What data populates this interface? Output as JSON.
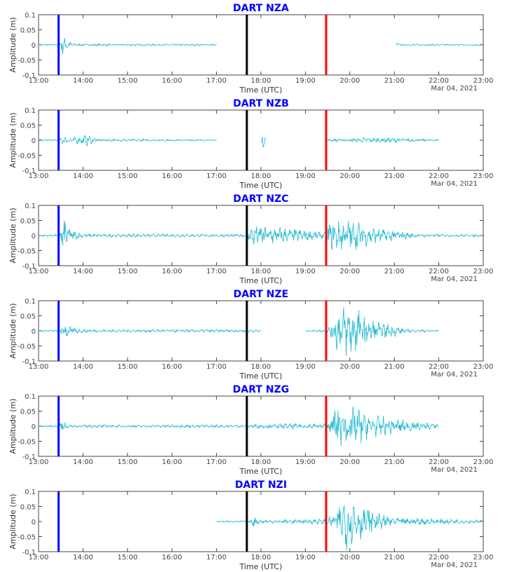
{
  "colors": {
    "trace": "#1fb8d0",
    "line_blue": "#0000ff",
    "line_black": "#000000",
    "line_red": "#ff0000",
    "title": "#0000ff"
  },
  "chart_data": {
    "type": "line",
    "xlabel": "Time (UTC)",
    "ylabel": "Amplitude (m)",
    "date_label": "Mar 04, 2021",
    "xlim": [
      "13:00",
      "23:00"
    ],
    "ylim": [
      -0.1,
      0.1
    ],
    "xticks": [
      "13:00",
      "14:00",
      "15:00",
      "16:00",
      "17:00",
      "18:00",
      "19:00",
      "20:00",
      "21:00",
      "22:00",
      "23:00"
    ],
    "yticks": [
      "0.1",
      "0.05",
      "0",
      "-0.05",
      "-0.1"
    ],
    "vertical_lines": [
      {
        "time": "13:27",
        "color": "blue"
      },
      {
        "time": "17:41",
        "color": "black"
      },
      {
        "time": "19:28",
        "color": "red"
      }
    ],
    "grid": false,
    "panels": [
      {
        "title": "DART NZA",
        "segments": [
          [
            "13:00",
            "17:00"
          ],
          [
            "21:03",
            "23:00"
          ]
        ],
        "envelope": [
          [
            "13:00",
            0.003
          ],
          [
            "13:28",
            0.003
          ],
          [
            "13:32",
            0.035
          ],
          [
            "13:40",
            0.012
          ],
          [
            "13:50",
            0.004
          ],
          [
            "17:00",
            0.003
          ],
          [
            "21:03",
            0.01
          ],
          [
            "21:06",
            0.003
          ],
          [
            "23:00",
            0.003
          ]
        ]
      },
      {
        "title": "DART NZB",
        "segments": [
          [
            "13:00",
            "17:00"
          ],
          [
            "18:00",
            "18:07"
          ],
          [
            "19:30",
            "22:00"
          ]
        ],
        "envelope": [
          [
            "13:00",
            0.003
          ],
          [
            "13:28",
            0.003
          ],
          [
            "13:32",
            0.015
          ],
          [
            "13:45",
            0.008
          ],
          [
            "14:05",
            0.02
          ],
          [
            "14:20",
            0.005
          ],
          [
            "17:00",
            0.003
          ],
          [
            "18:00",
            0.02
          ],
          [
            "18:03",
            0.025
          ],
          [
            "18:07",
            0.01
          ],
          [
            "19:30",
            0.004
          ],
          [
            "20:30",
            0.01
          ],
          [
            "21:00",
            0.008
          ],
          [
            "22:00",
            0.003
          ]
        ]
      },
      {
        "title": "DART NZC",
        "segments": [
          [
            "13:00",
            "23:00"
          ]
        ],
        "envelope": [
          [
            "13:00",
            0.003
          ],
          [
            "13:27",
            0.004
          ],
          [
            "13:32",
            0.07
          ],
          [
            "13:45",
            0.02
          ],
          [
            "14:00",
            0.006
          ],
          [
            "17:41",
            0.005
          ],
          [
            "17:46",
            0.04
          ],
          [
            "18:30",
            0.03
          ],
          [
            "19:27",
            0.01
          ],
          [
            "19:32",
            0.05
          ],
          [
            "20:00",
            0.06
          ],
          [
            "20:30",
            0.03
          ],
          [
            "21:00",
            0.02
          ],
          [
            "21:30",
            0.006
          ],
          [
            "23:00",
            0.004
          ]
        ]
      },
      {
        "title": "DART NZE",
        "segments": [
          [
            "13:00",
            "18:00"
          ],
          [
            "19:00",
            "22:00"
          ]
        ],
        "envelope": [
          [
            "13:00",
            0.003
          ],
          [
            "13:27",
            0.003
          ],
          [
            "13:32",
            0.03
          ],
          [
            "13:50",
            0.01
          ],
          [
            "14:10",
            0.005
          ],
          [
            "18:00",
            0.005
          ],
          [
            "19:00",
            0.003
          ],
          [
            "19:30",
            0.005
          ],
          [
            "19:45",
            0.08
          ],
          [
            "20:00",
            0.1
          ],
          [
            "20:30",
            0.04
          ],
          [
            "21:00",
            0.02
          ],
          [
            "21:15",
            0.006
          ],
          [
            "22:00",
            0.003
          ]
        ]
      },
      {
        "title": "DART NZG",
        "segments": [
          [
            "13:00",
            "22:00"
          ]
        ],
        "envelope": [
          [
            "13:00",
            0.003
          ],
          [
            "13:27",
            0.003
          ],
          [
            "13:32",
            0.03
          ],
          [
            "13:40",
            0.005
          ],
          [
            "17:41",
            0.005
          ],
          [
            "17:50",
            0.008
          ],
          [
            "19:28",
            0.01
          ],
          [
            "19:35",
            0.06
          ],
          [
            "19:55",
            0.09
          ],
          [
            "20:30",
            0.04
          ],
          [
            "21:30",
            0.015
          ],
          [
            "22:00",
            0.01
          ]
        ]
      },
      {
        "title": "DART NZI",
        "segments": [
          [
            "17:00",
            "23:00"
          ]
        ],
        "envelope": [
          [
            "17:00",
            0.003
          ],
          [
            "17:45",
            0.003
          ],
          [
            "17:50",
            0.02
          ],
          [
            "18:00",
            0.006
          ],
          [
            "19:28",
            0.01
          ],
          [
            "19:40",
            0.03
          ],
          [
            "19:55",
            0.1
          ],
          [
            "20:30",
            0.04
          ],
          [
            "21:00",
            0.015
          ],
          [
            "23:00",
            0.005
          ]
        ]
      }
    ]
  }
}
